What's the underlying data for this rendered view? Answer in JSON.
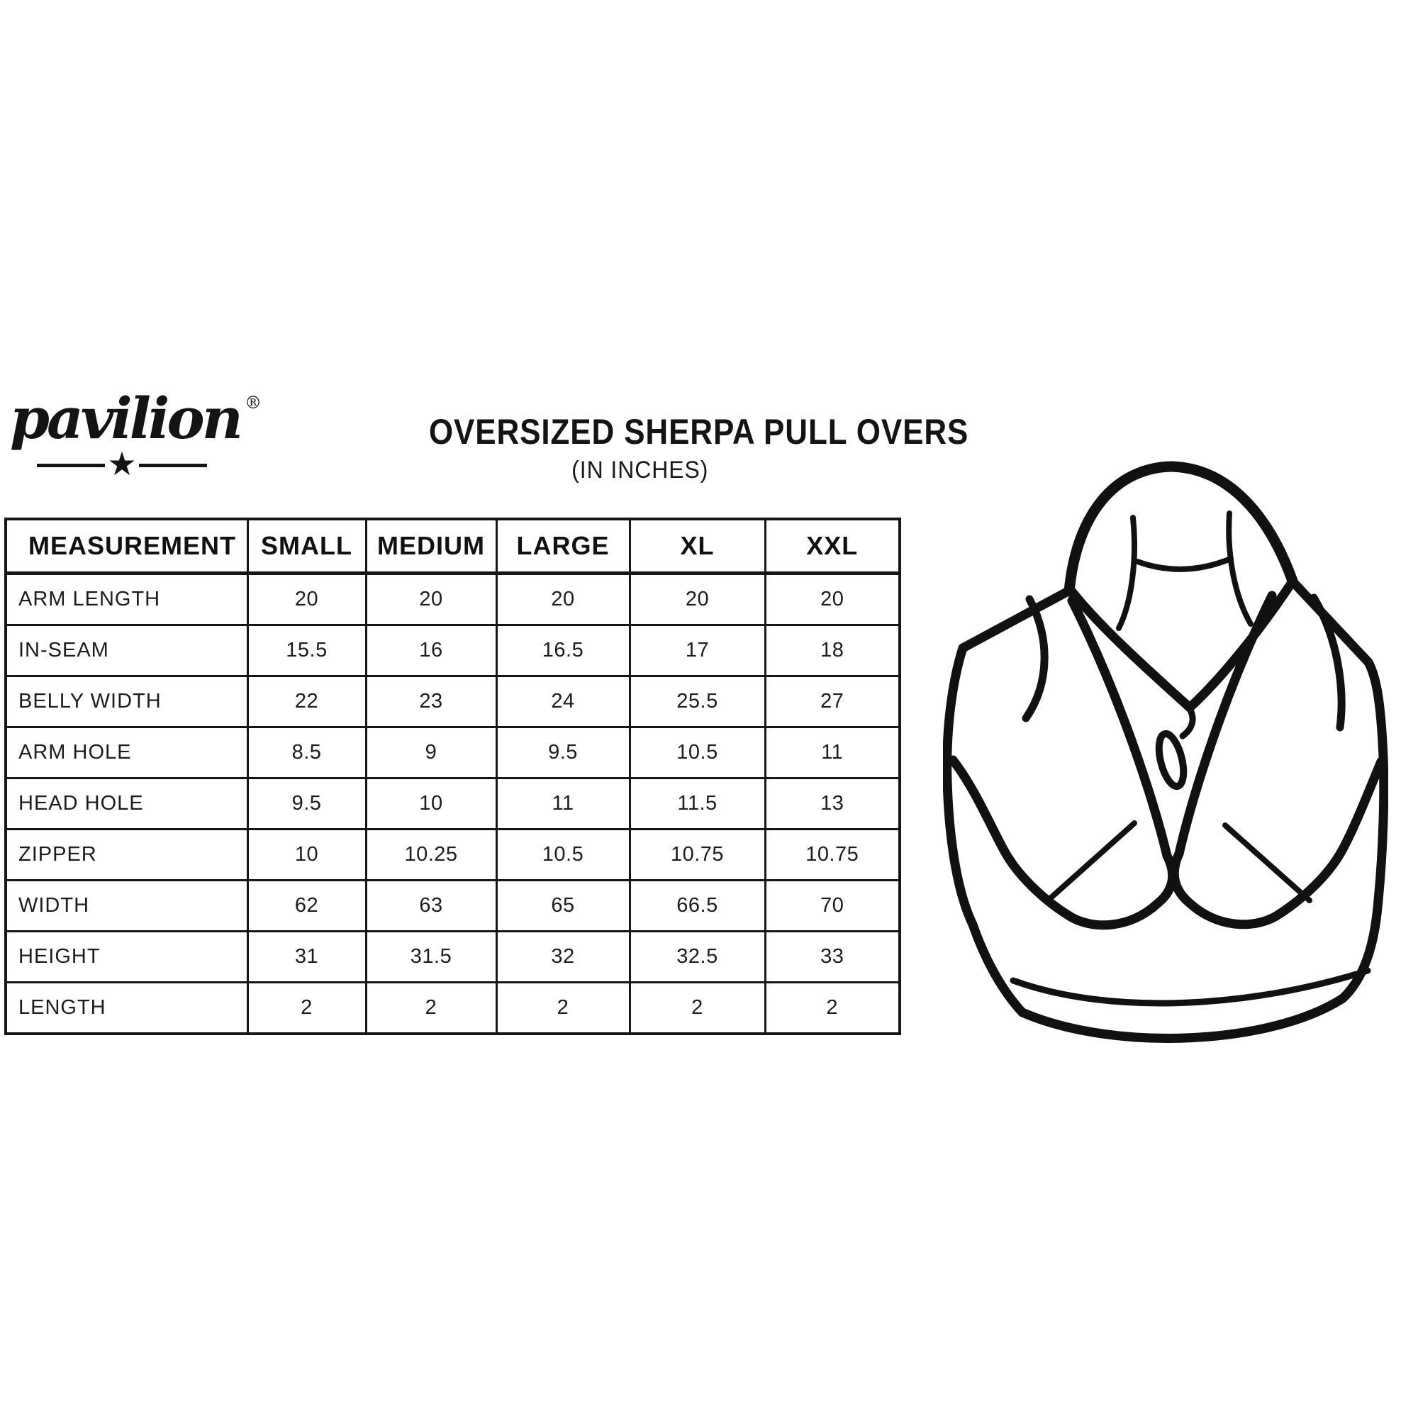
{
  "page": {
    "background": "#ffffff",
    "ink": "#161616"
  },
  "brand": {
    "wordmark": "pavilion",
    "registered_mark": "®"
  },
  "icons": {
    "star": "★"
  },
  "header": {
    "title": "OVERSIZED SHERPA PULL OVERS",
    "subtitle": "(IN INCHES)"
  },
  "size_table": {
    "columns": [
      "MEASUREMENT",
      "SMALL",
      "MEDIUM",
      "LARGE",
      "XL",
      "XXL"
    ],
    "rows": [
      {
        "label": "ARM LENGTH",
        "values": [
          "20",
          "20",
          "20",
          "20",
          "20"
        ]
      },
      {
        "label": "IN-SEAM",
        "values": [
          "15.5",
          "16",
          "16.5",
          "17",
          "18"
        ]
      },
      {
        "label": "BELLY WIDTH",
        "values": [
          "22",
          "23",
          "24",
          "25.5",
          "27"
        ]
      },
      {
        "label": "ARM HOLE",
        "values": [
          "8.5",
          "9",
          "9.5",
          "10.5",
          "11"
        ]
      },
      {
        "label": "HEAD HOLE",
        "values": [
          "9.5",
          "10",
          "11",
          "11.5",
          "13"
        ]
      },
      {
        "label": "ZIPPER",
        "values": [
          "10",
          "10.25",
          "10.5",
          "10.75",
          "10.75"
        ]
      },
      {
        "label": "WIDTH",
        "values": [
          "62",
          "63",
          "65",
          "66.5",
          "70"
        ]
      },
      {
        "label": "HEIGHT",
        "values": [
          "31",
          "31.5",
          "32",
          "32.5",
          "33"
        ]
      },
      {
        "label": "LENGTH",
        "values": [
          "2",
          "2",
          "2",
          "2",
          "2"
        ]
      }
    ]
  }
}
